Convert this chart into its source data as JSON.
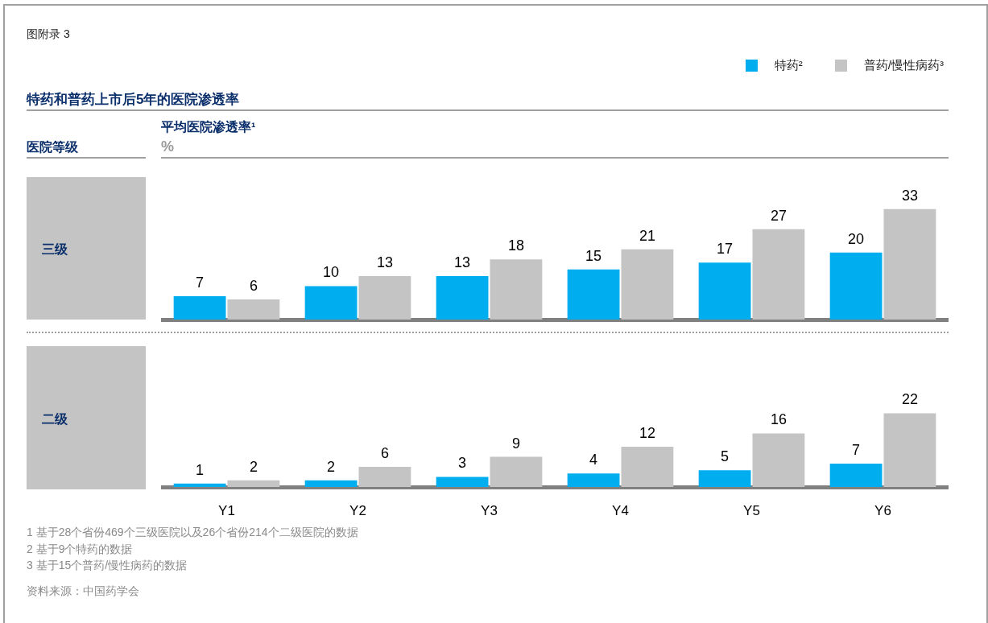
{
  "chart_data": [
    {
      "type": "bar",
      "title": "特药和普药上市后5年的医院渗透率",
      "ylabel": "平均医院渗透率¹",
      "annotations": [
        "图附录 3",
        "医院等级",
        "%",
        "三级"
      ],
      "categories": [
        null,
        null,
        null,
        null,
        null,
        null
      ],
      "series": [
        {
          "name": "特药²",
          "color": "#00aeef",
          "values": [
            7,
            10,
            13,
            15,
            17,
            20
          ]
        },
        {
          "name": "普药/慢性病药³",
          "color": "#c4c4c4",
          "values": [
            6,
            13,
            18,
            21,
            27,
            33
          ]
        }
      ],
      "data_labels": true,
      "legend": "top right",
      "tick_labels": false
    },
    {
      "type": "bar",
      "annotations": [
        "二级",
        "1 基于28个省份469个三级医院以及26个省份214个二级医院的数据",
        "2 基于9个特药的数据",
        "3 基于15个普药/慢性病药的数据",
        "资料来源：中国药学会"
      ],
      "categories": [
        "Y1",
        "Y2",
        "Y3",
        "Y4",
        "Y5",
        "Y6"
      ],
      "series": [
        {
          "color": "#00aeef",
          "values": [
            1,
            2,
            3,
            4,
            5,
            7
          ]
        },
        {
          "color": "#c4c4c4",
          "values": [
            2,
            6,
            9,
            12,
            16,
            22
          ]
        }
      ],
      "data_labels": true,
      "tick_labels": "x"
    }
  ]
}
